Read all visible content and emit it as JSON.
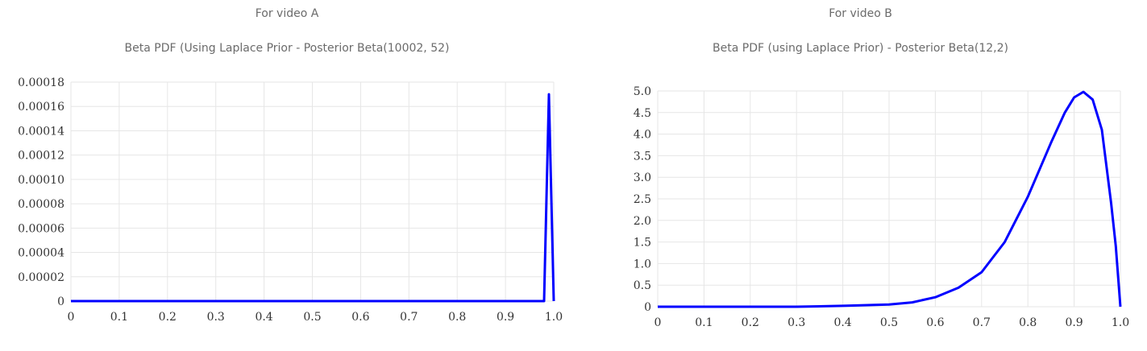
{
  "charts": [
    {
      "heading": "For video A",
      "title": "Beta PDF (Using Laplace Prior - Posterior Beta(10002, 52)",
      "x_ticks": [
        "0",
        "0.1",
        "0.2",
        "0.3",
        "0.4",
        "0.5",
        "0.6",
        "0.7",
        "0.8",
        "0.9",
        "1.0"
      ],
      "y_ticks": [
        "0",
        "0.00002",
        "0.00004",
        "0.00006",
        "0.00008",
        "0.00010",
        "0.00012",
        "0.00014",
        "0.00016",
        "0.00018"
      ],
      "line_color": "#0000ff",
      "grid_color": "#e6e6e6"
    },
    {
      "heading": "For video B",
      "title": "Beta PDF (using Laplace Prior) - Posterior Beta(12,2)",
      "x_ticks": [
        "0",
        "0.1",
        "0.2",
        "0.3",
        "0.4",
        "0.5",
        "0.6",
        "0.7",
        "0.8",
        "0.9",
        "1.0"
      ],
      "y_ticks": [
        "0",
        "0.5",
        "1.0",
        "1.5",
        "2.0",
        "2.5",
        "3.0",
        "3.5",
        "4.0",
        "4.5",
        "5.0"
      ],
      "line_color": "#0000ff",
      "grid_color": "#e6e6e6"
    }
  ],
  "chart_data": [
    {
      "type": "line",
      "title": "Beta PDF (Using Laplace Prior - Posterior Beta(10002, 52)",
      "xlabel": "",
      "ylabel": "",
      "xlim": [
        0,
        1.0
      ],
      "ylim": [
        0,
        0.00018
      ],
      "grid": true,
      "series": [
        {
          "x": [
            0,
            0.1,
            0.2,
            0.3,
            0.4,
            0.5,
            0.6,
            0.7,
            0.8,
            0.9,
            0.98,
            0.99,
            1.0
          ],
          "y": [
            0,
            0,
            0,
            0,
            0,
            0,
            0,
            0,
            0,
            0,
            0,
            0.00017,
            0
          ]
        }
      ]
    },
    {
      "type": "line",
      "title": "Beta PDF (using Laplace Prior) - Posterior Beta(12,2)",
      "xlabel": "",
      "ylabel": "",
      "xlim": [
        0,
        1.0
      ],
      "ylim": [
        0,
        5.0
      ],
      "grid": true,
      "series": [
        {
          "x": [
            0,
            0.1,
            0.2,
            0.3,
            0.4,
            0.5,
            0.55,
            0.6,
            0.65,
            0.7,
            0.75,
            0.8,
            0.85,
            0.88,
            0.9,
            0.92,
            0.94,
            0.96,
            0.98,
            0.99,
            1.0
          ],
          "y": [
            0,
            0,
            0,
            0,
            0.02,
            0.05,
            0.1,
            0.22,
            0.44,
            0.8,
            1.5,
            2.55,
            3.8,
            4.5,
            4.85,
            4.98,
            4.8,
            4.1,
            2.4,
            1.4,
            0
          ]
        }
      ]
    }
  ]
}
